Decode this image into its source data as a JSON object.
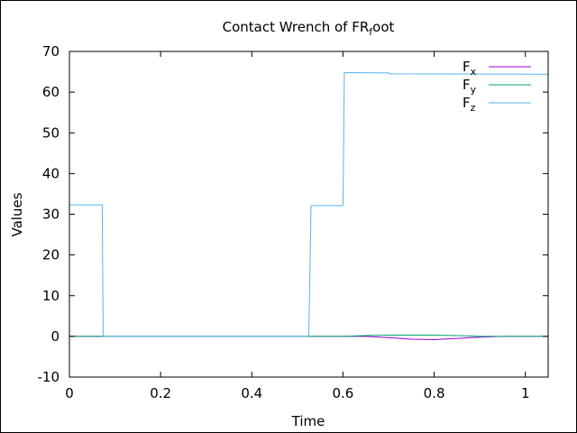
{
  "chart_data": {
    "type": "line",
    "title_main": "Contact Wrench of FR",
    "title_sub": "f",
    "title_end": "oot",
    "xlabel": "Time",
    "ylabel": "Values",
    "xlim": [
      0,
      1.05
    ],
    "ylim": [
      -10,
      70
    ],
    "xticks": [
      0,
      0.2,
      0.4,
      0.6,
      0.8,
      1
    ],
    "xtick_labels": [
      "0",
      "0.2",
      "0.4",
      "0.6",
      "0.8",
      "1"
    ],
    "yticks": [
      -10,
      0,
      10,
      20,
      30,
      40,
      50,
      60,
      70
    ],
    "ytick_labels": [
      "-10",
      "0",
      "10",
      "20",
      "30",
      "40",
      "50",
      "60",
      "70"
    ],
    "grid": false,
    "legend_position": "top-right",
    "series": [
      {
        "name_main": "F",
        "name_sub": "x",
        "color": "#9400d3",
        "x": [
          0,
          0.625,
          0.65,
          0.7,
          0.75,
          0.8,
          0.85,
          0.9,
          0.95,
          1.05
        ],
        "y": [
          0,
          0,
          0,
          -0.3,
          -0.7,
          -0.8,
          -0.5,
          -0.2,
          0,
          0
        ]
      },
      {
        "name_main": "F",
        "name_sub": "y",
        "color": "#009e73",
        "x": [
          0,
          0.6,
          0.65,
          0.7,
          0.8,
          0.85,
          0.9,
          1.05
        ],
        "y": [
          0,
          0,
          0.2,
          0.3,
          0.3,
          0.2,
          0,
          0
        ]
      },
      {
        "name_main": "F",
        "name_sub": "z",
        "color": "#56b4e9",
        "x": [
          0,
          0.065,
          0.072,
          0.074,
          0.52,
          0.525,
          0.53,
          0.595,
          0.6,
          0.603,
          0.7,
          0.703,
          1.05
        ],
        "y": [
          32.3,
          32.3,
          32.3,
          0,
          0,
          0,
          32.1,
          32.1,
          32.1,
          64.8,
          64.7,
          64.5,
          64.4
        ]
      }
    ]
  }
}
